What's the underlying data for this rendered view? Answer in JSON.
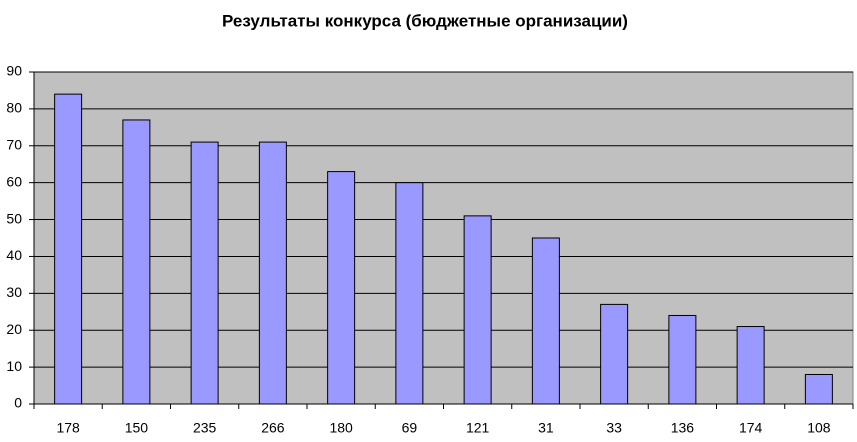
{
  "chart_data": {
    "type": "bar",
    "title": "Результаты конкурса (бюджетные организации)",
    "categories": [
      "178",
      "150",
      "235",
      "266",
      "180",
      "69",
      "121",
      "31",
      "33",
      "136",
      "174",
      "108"
    ],
    "values": [
      84,
      77,
      71,
      71,
      63,
      60,
      51,
      45,
      27,
      24,
      21,
      8
    ],
    "color": "#9999ff",
    "plot_background": "#c0c0c0",
    "ylim": [
      0,
      90
    ],
    "yticks": [
      0,
      10,
      20,
      30,
      40,
      50,
      60,
      70,
      80,
      90
    ],
    "grid": true
  }
}
